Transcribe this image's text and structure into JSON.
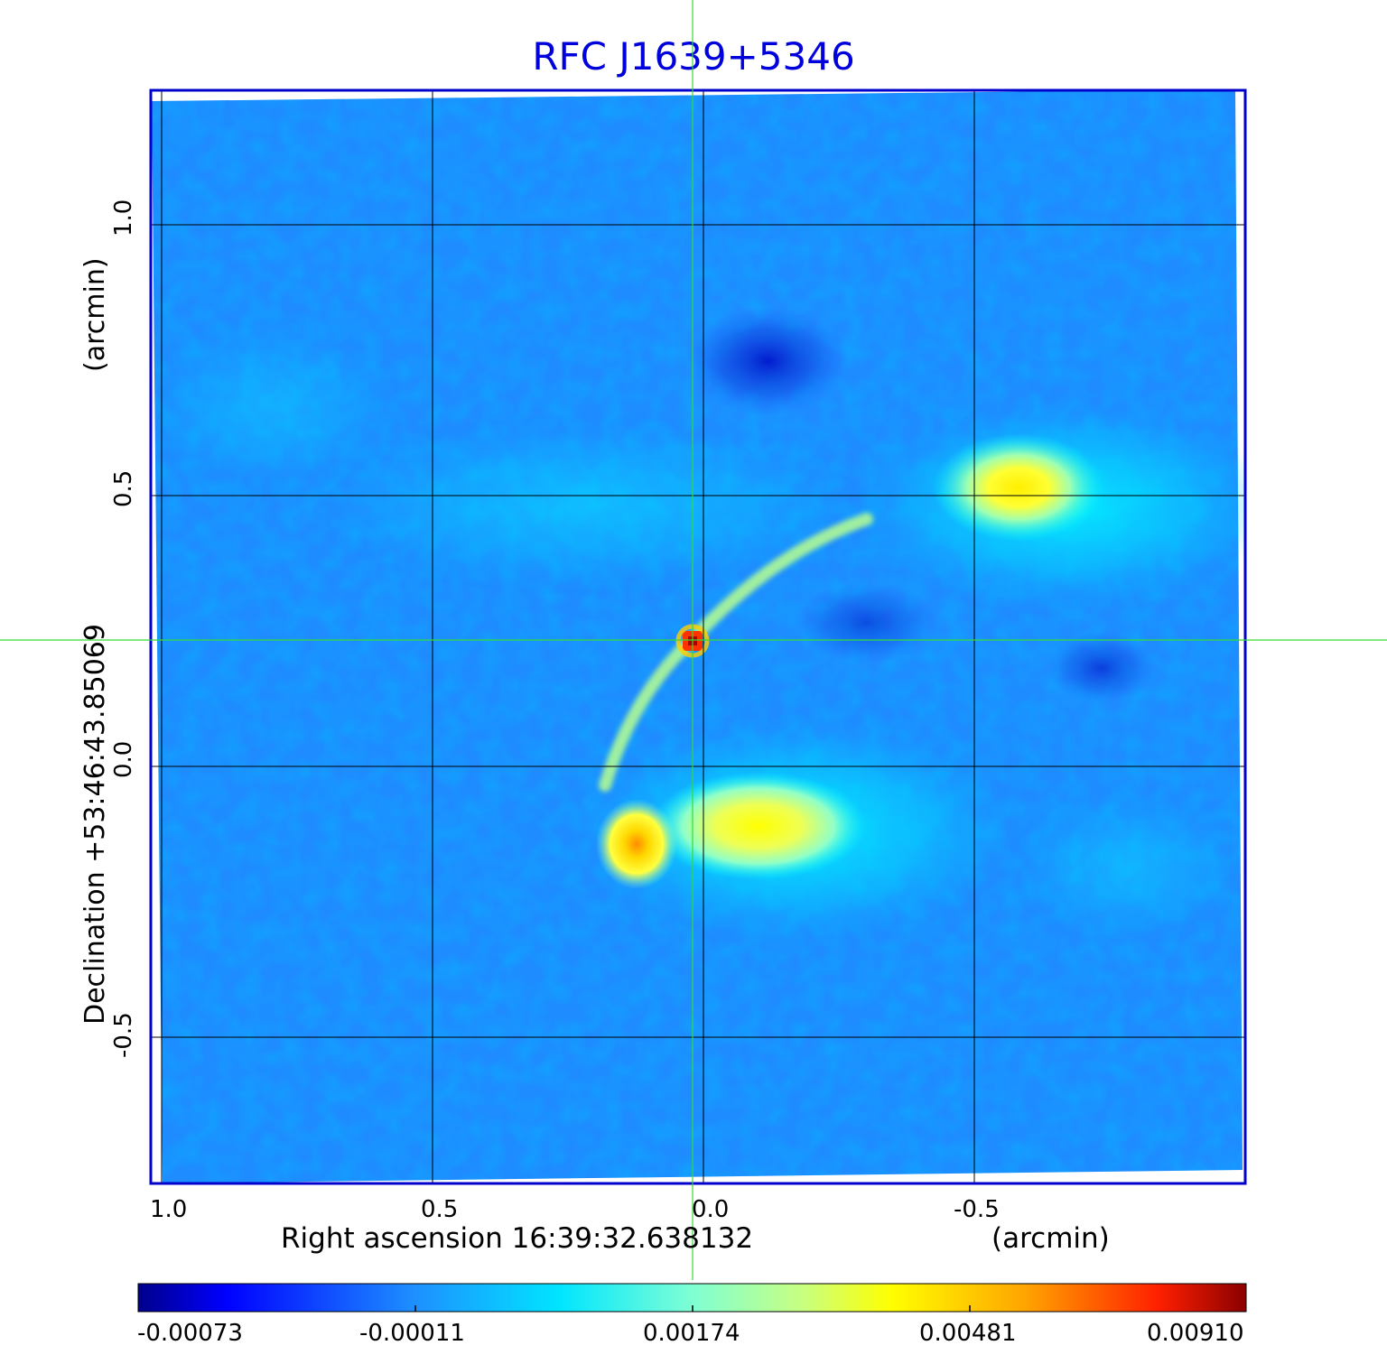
{
  "title": "RFC J1639+5346",
  "axes": {
    "x_label": "Right ascension  16:39:32.638132",
    "x_unit": "(arcmin)",
    "y_label": "Declination  +53:46:43.85069",
    "y_unit": "(arcmin)",
    "x_ticks": [
      "1.0",
      "0.5",
      "0.0",
      "-0.5"
    ],
    "y_ticks": [
      "1.0",
      "0.5",
      "0.0",
      "-0.5"
    ]
  },
  "colorbar": {
    "ticks": [
      "-0.00073",
      "-0.00011",
      "0.00174",
      "0.00481",
      "0.00910"
    ]
  },
  "colors": {
    "frame": "#0000cc",
    "title": "#0000dd",
    "crosshair": "#33dd33",
    "grid": "#000000",
    "background_field": "#1e90ff"
  }
}
